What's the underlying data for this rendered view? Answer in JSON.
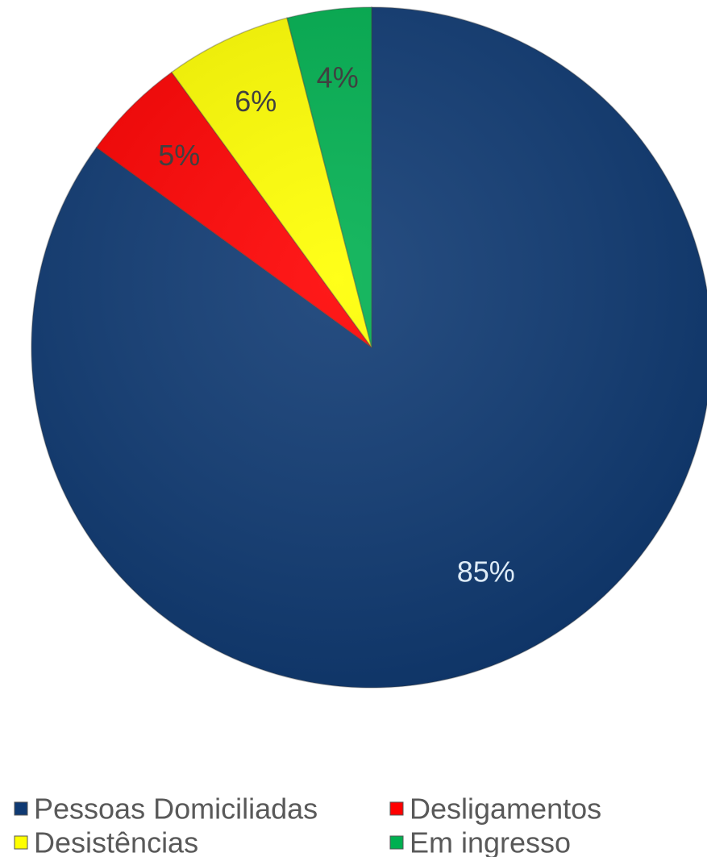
{
  "chart_data": {
    "type": "pie",
    "start_angle": "12 o'clock",
    "direction": "clockwise",
    "legend_position": "bottom",
    "slices": [
      {
        "name": "Pessoas Domiciliadas",
        "value": 85,
        "label": "85%",
        "color": "#0F3A73",
        "label_color": "#DDEBF7"
      },
      {
        "name": "Desligamentos",
        "value": 5,
        "label": "5%",
        "color": "#FF0000",
        "label_color": "#404040"
      },
      {
        "name": "Desistências",
        "value": 6,
        "label": "6%",
        "color": "#FFFF00",
        "label_color": "#404040"
      },
      {
        "name": "Em ingresso",
        "value": 4,
        "label": "4%",
        "color": "#00B050",
        "label_color": "#404040"
      }
    ]
  }
}
